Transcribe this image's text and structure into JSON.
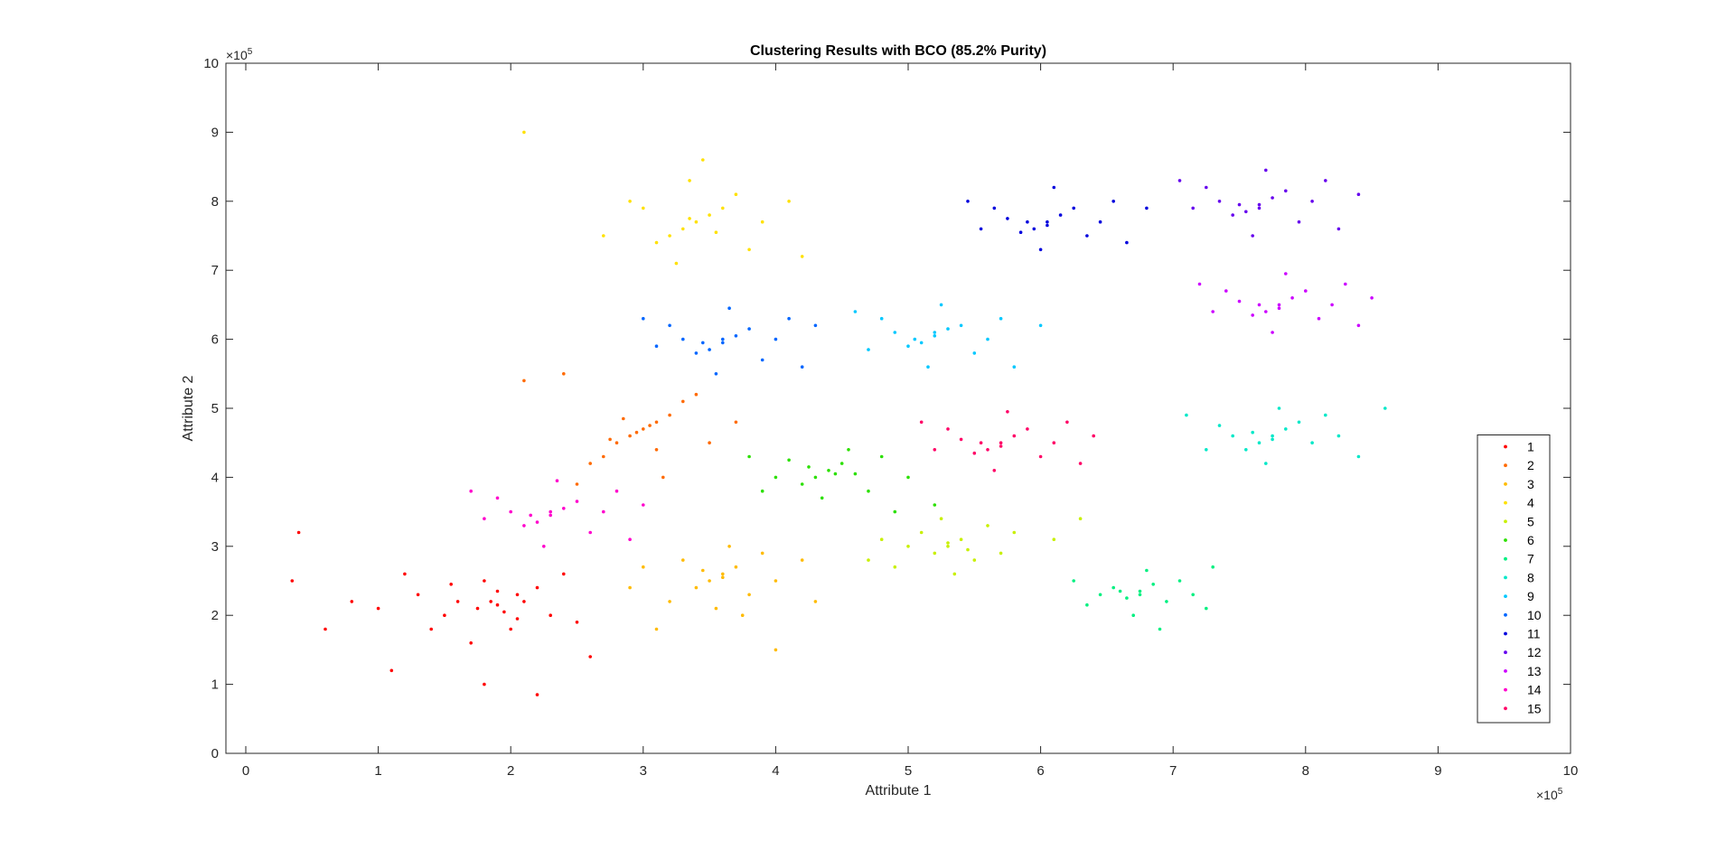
{
  "chart_data": {
    "type": "scatter",
    "title": "Clustering Results with BCO (85.2% Purity)",
    "xlabel": "Attribute 1",
    "ylabel": "Attribute 2",
    "x_multiplier": "×10",
    "x_multiplier_exp": "5",
    "y_multiplier": "×10",
    "y_multiplier_exp": "5",
    "xlim": [
      -0.15,
      10
    ],
    "ylim": [
      0,
      10
    ],
    "xticks": [
      0,
      1,
      2,
      3,
      4,
      5,
      6,
      7,
      8,
      9,
      10
    ],
    "yticks": [
      0,
      1,
      2,
      3,
      4,
      5,
      6,
      7,
      8,
      9,
      10
    ],
    "xtick_labels": [
      "0",
      "1",
      "2",
      "3",
      "4",
      "5",
      "6",
      "7",
      "8",
      "9",
      "10"
    ],
    "ytick_labels": [
      "0",
      "1",
      "2",
      "3",
      "4",
      "5",
      "6",
      "7",
      "8",
      "9",
      "10"
    ],
    "grid": false,
    "legend_position": "bottom-right",
    "series": [
      {
        "name": "1",
        "color": "#ff0000",
        "points": [
          [
            1.9,
            2.15
          ],
          [
            1.6,
            2.2
          ],
          [
            1.75,
            2.1
          ],
          [
            2.05,
            2.3
          ],
          [
            1.95,
            2.05
          ],
          [
            2.1,
            2.2
          ],
          [
            1.5,
            2.0
          ],
          [
            1.3,
            2.3
          ],
          [
            1.0,
            2.1
          ],
          [
            1.8,
            2.5
          ],
          [
            2.3,
            2.0
          ],
          [
            2.2,
            2.4
          ],
          [
            1.4,
            1.8
          ],
          [
            1.7,
            1.6
          ],
          [
            2.0,
            1.8
          ],
          [
            2.4,
            2.6
          ],
          [
            1.2,
            2.6
          ],
          [
            0.8,
            2.2
          ],
          [
            0.6,
            1.8
          ],
          [
            1.1,
            1.2
          ],
          [
            1.8,
            1.0
          ],
          [
            2.2,
            0.85
          ],
          [
            2.6,
            1.4
          ],
          [
            1.55,
            2.45
          ],
          [
            2.5,
            1.9
          ],
          [
            0.35,
            2.5
          ],
          [
            0.4,
            3.2
          ],
          [
            1.9,
            2.35
          ],
          [
            2.05,
            1.95
          ],
          [
            1.85,
            2.2
          ]
        ]
      },
      {
        "name": "2",
        "color": "#ff6a00",
        "points": [
          [
            3.0,
            4.7
          ],
          [
            2.9,
            4.6
          ],
          [
            3.1,
            4.8
          ],
          [
            2.8,
            4.5
          ],
          [
            3.2,
            4.9
          ],
          [
            2.95,
            4.65
          ],
          [
            3.05,
            4.75
          ],
          [
            2.7,
            4.3
          ],
          [
            3.3,
            5.1
          ],
          [
            2.6,
            4.2
          ],
          [
            3.4,
            5.2
          ],
          [
            3.1,
            4.4
          ],
          [
            2.85,
            4.85
          ],
          [
            2.5,
            3.9
          ],
          [
            3.5,
            4.5
          ],
          [
            2.4,
            5.5
          ],
          [
            2.1,
            5.4
          ],
          [
            3.7,
            4.8
          ],
          [
            3.15,
            4.0
          ],
          [
            2.75,
            4.55
          ]
        ]
      },
      {
        "name": "3",
        "color": "#ffbb00",
        "points": [
          [
            3.6,
            2.6
          ],
          [
            3.5,
            2.5
          ],
          [
            3.7,
            2.7
          ],
          [
            3.4,
            2.4
          ],
          [
            3.8,
            2.3
          ],
          [
            3.3,
            2.8
          ],
          [
            3.9,
            2.9
          ],
          [
            3.2,
            2.2
          ],
          [
            4.0,
            2.5
          ],
          [
            3.55,
            2.1
          ],
          [
            3.65,
            3.0
          ],
          [
            3.0,
            2.7
          ],
          [
            4.2,
            2.8
          ],
          [
            3.1,
            1.8
          ],
          [
            3.75,
            2.0
          ],
          [
            3.45,
            2.65
          ],
          [
            4.3,
            2.2
          ],
          [
            2.9,
            2.4
          ],
          [
            3.6,
            2.55
          ],
          [
            4.0,
            1.5
          ]
        ]
      },
      {
        "name": "4",
        "color": "#ffe100",
        "points": [
          [
            3.4,
            7.7
          ],
          [
            3.3,
            7.6
          ],
          [
            3.5,
            7.8
          ],
          [
            3.2,
            7.5
          ],
          [
            3.6,
            7.9
          ],
          [
            3.1,
            7.4
          ],
          [
            3.7,
            8.1
          ],
          [
            3.0,
            7.9
          ],
          [
            3.8,
            7.3
          ],
          [
            3.35,
            8.3
          ],
          [
            2.9,
            8.0
          ],
          [
            3.9,
            7.7
          ],
          [
            3.25,
            7.1
          ],
          [
            3.55,
            7.55
          ],
          [
            4.1,
            8.0
          ],
          [
            2.7,
            7.5
          ],
          [
            3.45,
            8.6
          ],
          [
            4.2,
            7.2
          ],
          [
            3.35,
            7.75
          ],
          [
            2.1,
            9.0
          ]
        ]
      },
      {
        "name": "5",
        "color": "#c8f000",
        "points": [
          [
            5.3,
            3.0
          ],
          [
            5.2,
            2.9
          ],
          [
            5.4,
            3.1
          ],
          [
            5.1,
            3.2
          ],
          [
            5.5,
            2.8
          ],
          [
            5.0,
            3.0
          ],
          [
            5.6,
            3.3
          ],
          [
            4.9,
            2.7
          ],
          [
            5.7,
            2.9
          ],
          [
            5.35,
            2.6
          ],
          [
            5.25,
            3.4
          ],
          [
            4.8,
            3.1
          ],
          [
            5.8,
            3.2
          ],
          [
            5.45,
            2.95
          ],
          [
            6.1,
            3.1
          ],
          [
            4.7,
            2.8
          ],
          [
            5.3,
            3.05
          ],
          [
            6.3,
            3.4
          ]
        ]
      },
      {
        "name": "6",
        "color": "#2be000",
        "points": [
          [
            4.4,
            4.1
          ],
          [
            4.3,
            4.0
          ],
          [
            4.5,
            4.2
          ],
          [
            4.2,
            3.9
          ],
          [
            4.6,
            4.05
          ],
          [
            4.1,
            4.25
          ],
          [
            4.7,
            3.8
          ],
          [
            4.0,
            4.0
          ],
          [
            4.8,
            4.3
          ],
          [
            4.35,
            3.7
          ],
          [
            4.55,
            4.4
          ],
          [
            3.9,
            3.8
          ],
          [
            5.0,
            4.0
          ],
          [
            4.25,
            4.15
          ],
          [
            5.2,
            3.6
          ],
          [
            3.8,
            4.3
          ],
          [
            4.45,
            4.05
          ],
          [
            4.9,
            3.5
          ]
        ]
      },
      {
        "name": "7",
        "color": "#00f080",
        "points": [
          [
            6.75,
            2.35
          ],
          [
            6.65,
            2.25
          ],
          [
            6.85,
            2.45
          ],
          [
            6.55,
            2.4
          ],
          [
            6.95,
            2.2
          ],
          [
            6.45,
            2.3
          ],
          [
            7.05,
            2.5
          ],
          [
            6.35,
            2.15
          ],
          [
            7.15,
            2.3
          ],
          [
            6.7,
            2.0
          ],
          [
            6.8,
            2.65
          ],
          [
            6.25,
            2.5
          ],
          [
            7.25,
            2.1
          ],
          [
            6.6,
            2.35
          ],
          [
            6.9,
            1.8
          ],
          [
            7.3,
            2.7
          ],
          [
            6.75,
            2.3
          ]
        ]
      },
      {
        "name": "8",
        "color": "#00e8c8",
        "points": [
          [
            7.75,
            4.6
          ],
          [
            7.65,
            4.5
          ],
          [
            7.85,
            4.7
          ],
          [
            7.55,
            4.4
          ],
          [
            7.95,
            4.8
          ],
          [
            7.45,
            4.6
          ],
          [
            8.05,
            4.5
          ],
          [
            7.35,
            4.75
          ],
          [
            8.15,
            4.9
          ],
          [
            7.7,
            4.2
          ],
          [
            7.8,
            5.0
          ],
          [
            7.25,
            4.4
          ],
          [
            8.25,
            4.6
          ],
          [
            7.6,
            4.65
          ],
          [
            8.4,
            4.3
          ],
          [
            7.1,
            4.9
          ],
          [
            7.75,
            4.55
          ],
          [
            8.6,
            5.0
          ]
        ]
      },
      {
        "name": "9",
        "color": "#00c8ff",
        "points": [
          [
            5.2,
            6.05
          ],
          [
            5.1,
            5.95
          ],
          [
            5.3,
            6.15
          ],
          [
            5.0,
            5.9
          ],
          [
            5.4,
            6.2
          ],
          [
            4.9,
            6.1
          ],
          [
            5.5,
            5.8
          ],
          [
            4.8,
            6.3
          ],
          [
            5.6,
            6.0
          ],
          [
            5.15,
            5.6
          ],
          [
            5.25,
            6.5
          ],
          [
            4.7,
            5.85
          ],
          [
            5.7,
            6.3
          ],
          [
            5.05,
            6.0
          ],
          [
            5.8,
            5.6
          ],
          [
            4.6,
            6.4
          ],
          [
            5.2,
            6.1
          ],
          [
            6.0,
            6.2
          ]
        ]
      },
      {
        "name": "10",
        "color": "#0066ff",
        "points": [
          [
            3.6,
            5.95
          ],
          [
            3.5,
            5.85
          ],
          [
            3.7,
            6.05
          ],
          [
            3.4,
            5.8
          ],
          [
            3.8,
            6.15
          ],
          [
            3.3,
            6.0
          ],
          [
            3.9,
            5.7
          ],
          [
            3.2,
            6.2
          ],
          [
            4.0,
            6.0
          ],
          [
            3.55,
            5.5
          ],
          [
            3.65,
            6.45
          ],
          [
            3.1,
            5.9
          ],
          [
            4.1,
            6.3
          ],
          [
            3.45,
            5.95
          ],
          [
            4.2,
            5.6
          ],
          [
            3.0,
            6.3
          ],
          [
            3.6,
            6.0
          ],
          [
            4.3,
            6.2
          ]
        ]
      },
      {
        "name": "11",
        "color": "#0000dd",
        "points": [
          [
            6.05,
            7.7
          ],
          [
            5.95,
            7.6
          ],
          [
            6.15,
            7.8
          ],
          [
            5.85,
            7.55
          ],
          [
            6.25,
            7.9
          ],
          [
            5.75,
            7.75
          ],
          [
            6.35,
            7.5
          ],
          [
            5.65,
            7.9
          ],
          [
            6.45,
            7.7
          ],
          [
            6.0,
            7.3
          ],
          [
            6.1,
            8.2
          ],
          [
            5.55,
            7.6
          ],
          [
            6.55,
            8.0
          ],
          [
            5.9,
            7.7
          ],
          [
            6.65,
            7.4
          ],
          [
            5.45,
            8.0
          ],
          [
            6.05,
            7.65
          ],
          [
            6.8,
            7.9
          ]
        ]
      },
      {
        "name": "12",
        "color": "#6600ee",
        "points": [
          [
            7.65,
            7.95
          ],
          [
            7.55,
            7.85
          ],
          [
            7.75,
            8.05
          ],
          [
            7.45,
            7.8
          ],
          [
            7.85,
            8.15
          ],
          [
            7.35,
            8.0
          ],
          [
            7.95,
            7.7
          ],
          [
            7.25,
            8.2
          ],
          [
            8.05,
            8.0
          ],
          [
            7.6,
            7.5
          ],
          [
            7.7,
            8.45
          ],
          [
            7.15,
            7.9
          ],
          [
            8.15,
            8.3
          ],
          [
            7.5,
            7.95
          ],
          [
            8.25,
            7.6
          ],
          [
            7.05,
            8.3
          ],
          [
            7.65,
            7.9
          ],
          [
            8.4,
            8.1
          ]
        ]
      },
      {
        "name": "13",
        "color": "#cc00ff",
        "points": [
          [
            7.8,
            6.5
          ],
          [
            7.7,
            6.4
          ],
          [
            7.9,
            6.6
          ],
          [
            7.6,
            6.35
          ],
          [
            8.0,
            6.7
          ],
          [
            7.5,
            6.55
          ],
          [
            8.1,
            6.3
          ],
          [
            7.4,
            6.7
          ],
          [
            8.2,
            6.5
          ],
          [
            7.75,
            6.1
          ],
          [
            7.85,
            6.95
          ],
          [
            7.3,
            6.4
          ],
          [
            8.3,
            6.8
          ],
          [
            7.65,
            6.5
          ],
          [
            8.4,
            6.2
          ],
          [
            7.2,
            6.8
          ],
          [
            7.8,
            6.45
          ],
          [
            8.5,
            6.6
          ]
        ]
      },
      {
        "name": "14",
        "color": "#ff00cc",
        "points": [
          [
            2.3,
            3.45
          ],
          [
            2.2,
            3.35
          ],
          [
            2.4,
            3.55
          ],
          [
            2.1,
            3.3
          ],
          [
            2.5,
            3.65
          ],
          [
            2.0,
            3.5
          ],
          [
            2.6,
            3.2
          ],
          [
            1.9,
            3.7
          ],
          [
            2.7,
            3.5
          ],
          [
            2.25,
            3.0
          ],
          [
            2.35,
            3.95
          ],
          [
            1.8,
            3.4
          ],
          [
            2.8,
            3.8
          ],
          [
            2.15,
            3.45
          ],
          [
            2.9,
            3.1
          ],
          [
            1.7,
            3.8
          ],
          [
            2.3,
            3.5
          ],
          [
            3.0,
            3.6
          ]
        ]
      },
      {
        "name": "15",
        "color": "#ff0066",
        "points": [
          [
            5.7,
            4.5
          ],
          [
            5.6,
            4.4
          ],
          [
            5.8,
            4.6
          ],
          [
            5.5,
            4.35
          ],
          [
            5.9,
            4.7
          ],
          [
            5.4,
            4.55
          ],
          [
            6.0,
            4.3
          ],
          [
            5.3,
            4.7
          ],
          [
            6.1,
            4.5
          ],
          [
            5.65,
            4.1
          ],
          [
            5.75,
            4.95
          ],
          [
            5.2,
            4.4
          ],
          [
            6.2,
            4.8
          ],
          [
            5.55,
            4.5
          ],
          [
            6.3,
            4.2
          ],
          [
            5.1,
            4.8
          ],
          [
            5.7,
            4.45
          ],
          [
            6.4,
            4.6
          ]
        ]
      }
    ]
  }
}
